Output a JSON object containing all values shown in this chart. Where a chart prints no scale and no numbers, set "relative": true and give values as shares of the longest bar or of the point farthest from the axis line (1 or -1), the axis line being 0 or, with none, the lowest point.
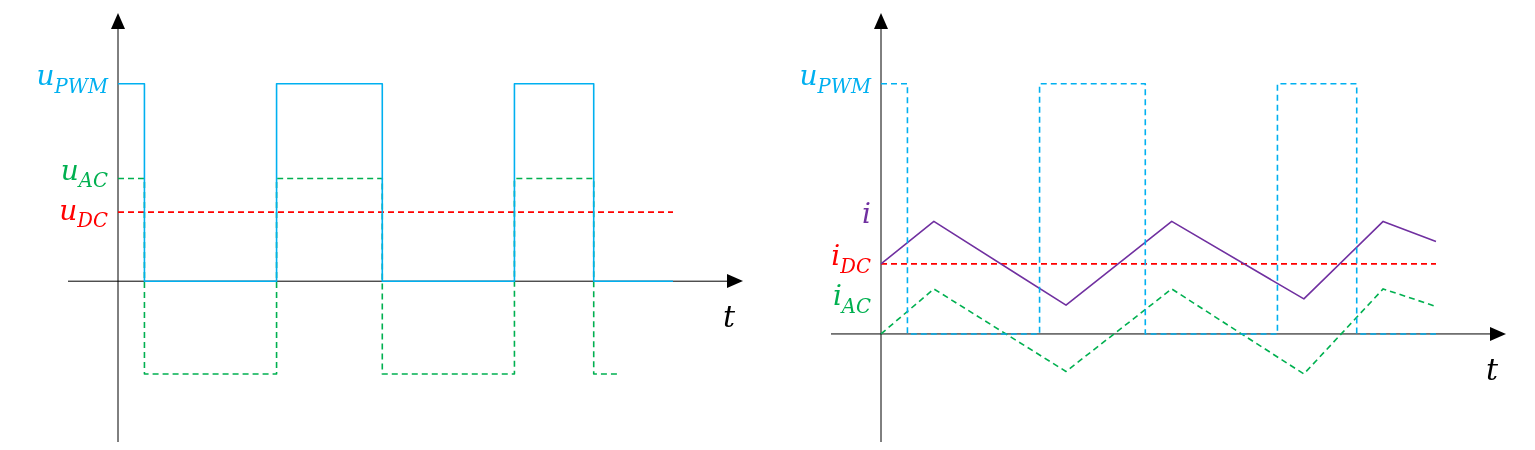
{
  "chart_data": [
    {
      "type": "step",
      "relative": true,
      "xlabel": "t",
      "marker": "none",
      "categories": [
        null,
        null,
        null,
        null,
        null,
        null,
        null,
        null,
        null,
        null,
        null,
        null,
        null,
        null,
        null,
        null,
        null,
        null,
        null,
        null,
        null,
        null
      ],
      "series": [
        {
          "name": "u$_{PWM}$",
          "color": "#00b0f0",
          "line_style": "solid",
          "values": [
            1,
            1,
            0,
            0,
            0,
            0,
            0,
            1,
            1,
            1,
            1,
            0,
            0,
            0,
            0,
            0,
            1,
            1,
            1,
            0,
            0,
            0
          ]
        },
        {
          "name": "u$_{AC}$",
          "color": "#00b050",
          "line_style": "dashed",
          "values": [
            0.52,
            0.52,
            -0.47,
            -0.47,
            -0.47,
            -0.47,
            -0.47,
            0.52,
            0.52,
            0.52,
            0.52,
            -0.47,
            -0.47,
            -0.47,
            -0.47,
            -0.47,
            0.52,
            0.52,
            0.52,
            -0.47,
            null,
            null
          ]
        },
        {
          "name": "u$_{DC}$",
          "color": "#ff0000",
          "type": "line",
          "line_style": "dashed",
          "values": [
            0.35,
            0.35,
            0.35,
            0.35,
            0.35,
            0.35,
            0.35,
            0.35,
            0.35,
            0.35,
            0.35,
            0.35,
            0.35,
            0.35,
            0.35,
            0.35,
            0.35,
            0.35,
            0.35,
            0.35,
            0.35,
            0.35
          ]
        }
      ]
    },
    {
      "type": "line",
      "relative": true,
      "xlabel": "t",
      "marker": "none",
      "categories": [
        null,
        null,
        null,
        null,
        null,
        null,
        null,
        null,
        null,
        null,
        null,
        null,
        null,
        null,
        null,
        null,
        null,
        null,
        null,
        null,
        null,
        null
      ],
      "series": [
        {
          "name": "u$_{PWM}$",
          "color": "#00b0f0",
          "type": "step",
          "line_style": "dashed",
          "values": [
            1,
            1,
            0,
            0,
            0,
            0,
            0,
            1,
            1,
            1,
            1,
            0,
            0,
            0,
            0,
            0,
            1,
            1,
            1,
            0,
            0,
            0
          ]
        },
        {
          "name": "i",
          "color": "#7030a0",
          "line_style": "solid",
          "values": [
            0.28,
            null,
            0.45,
            null,
            null,
            null,
            null,
            0.115,
            null,
            null,
            null,
            0.45,
            null,
            null,
            null,
            null,
            0.14,
            null,
            null,
            0.45,
            null,
            0.37
          ]
        },
        {
          "name": "i$_{DC}$",
          "color": "#ff0000",
          "line_style": "dashed",
          "values": [
            0.28,
            0.28,
            0.28,
            0.28,
            0.28,
            0.28,
            0.28,
            0.28,
            0.28,
            0.28,
            0.28,
            0.28,
            0.28,
            0.28,
            0.28,
            0.28,
            0.28,
            0.28,
            0.28,
            0.28,
            0.28,
            0.28
          ]
        },
        {
          "name": "i$_{AC}$",
          "color": "#00b050",
          "line_style": "dashed",
          "values": [
            0,
            null,
            0.18,
            null,
            null,
            null,
            null,
            -0.15,
            null,
            null,
            null,
            0.18,
            null,
            null,
            null,
            null,
            -0.16,
            null,
            null,
            0.18,
            null,
            0.11
          ]
        }
      ]
    }
  ]
}
